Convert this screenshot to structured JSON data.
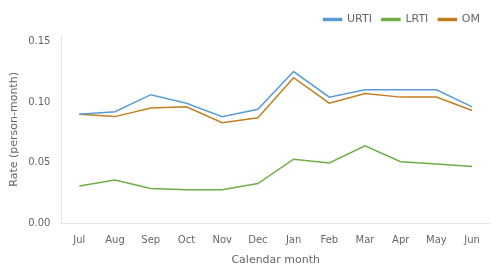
{
  "chart_data": {
    "type": "line",
    "categories": [
      "Jul",
      "Aug",
      "Sep",
      "Oct",
      "Nov",
      "Dec",
      "Jan",
      "Feb",
      "Mar",
      "Apr",
      "May",
      "Jun"
    ],
    "series": [
      {
        "name": "URTI",
        "color": "#5b9bd5",
        "values": [
          0.09,
          0.092,
          0.106,
          0.099,
          0.088,
          0.094,
          0.125,
          0.104,
          0.11,
          0.11,
          0.11,
          0.096
        ]
      },
      {
        "name": "LRTI",
        "color": "#70ad47",
        "values": [
          0.031,
          0.036,
          0.029,
          0.028,
          0.028,
          0.033,
          0.053,
          0.05,
          0.064,
          0.051,
          0.049,
          0.047
        ]
      },
      {
        "name": "OM",
        "color": "#c07f20",
        "values": [
          0.09,
          0.088,
          0.095,
          0.096,
          0.083,
          0.087,
          0.12,
          0.099,
          0.107,
          0.104,
          0.104,
          0.093
        ]
      }
    ],
    "xlabel": "Calendar month",
    "ylabel": "Rate (person-month)",
    "ylim": [
      0.0,
      0.155
    ],
    "yticks": [
      {
        "value": 0.0,
        "label": "0.00"
      },
      0.05,
      {
        "value": 0.1,
        "label": "0.10"
      },
      0.15
    ],
    "grid": false,
    "legend": "upper right"
  }
}
